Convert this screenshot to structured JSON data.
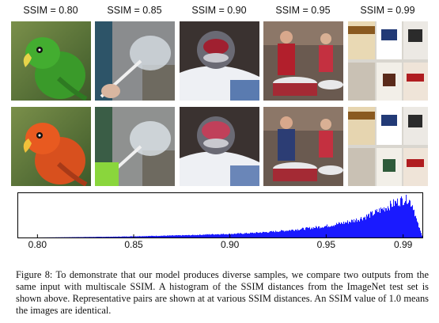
{
  "figure": {
    "columns": [
      {
        "label": "SSIM = 0.80",
        "subject": "green parrot / red parrot"
      },
      {
        "label": "SSIM = 0.85",
        "subject": "bubble wand"
      },
      {
        "label": "SSIM = 0.90",
        "subject": "helmet"
      },
      {
        "label": "SSIM = 0.95",
        "subject": "drummers"
      },
      {
        "label": "SSIM = 0.99",
        "subject": "cigarette packs"
      }
    ],
    "colors": {
      "histogram": "#1a1aff",
      "parrot_top": "#3fa12c",
      "parrot_bottom": "#e2531f",
      "background_green": "#5c7a3a"
    }
  },
  "chart_data": {
    "type": "bar",
    "title": "",
    "xlabel": "",
    "ylabel": "",
    "xlim": [
      0.79,
      1.0
    ],
    "x_ticks": [
      "0.80",
      "0.85",
      "0.90",
      "0.95",
      "0.99"
    ],
    "x_tick_values": [
      0.8,
      0.85,
      0.9,
      0.95,
      0.99
    ],
    "series": [
      {
        "x": [
          0.8,
          0.82,
          0.84,
          0.85,
          0.86,
          0.87,
          0.88,
          0.89,
          0.9,
          0.91,
          0.92,
          0.93,
          0.94,
          0.95,
          0.96,
          0.965,
          0.97,
          0.975,
          0.98,
          0.985,
          0.99,
          0.992,
          0.995,
          0.997,
          1.0
        ],
        "values": [
          0.0,
          0.01,
          0.02,
          0.03,
          0.04,
          0.05,
          0.06,
          0.08,
          0.09,
          0.11,
          0.14,
          0.18,
          0.23,
          0.29,
          0.38,
          0.44,
          0.52,
          0.62,
          0.74,
          0.86,
          0.96,
          1.0,
          0.8,
          0.4,
          0.0
        ]
      }
    ]
  },
  "caption": {
    "text": "Figure 8:  To demonstrate that our model produces diverse samples, we compare two outputs from the same input with multiscale SSIM. A histogram of the SSIM distances from the ImageNet test set is shown above. Representative pairs are shown at at various SSIM distances. An SSIM value of 1.0 means the images are identical."
  }
}
